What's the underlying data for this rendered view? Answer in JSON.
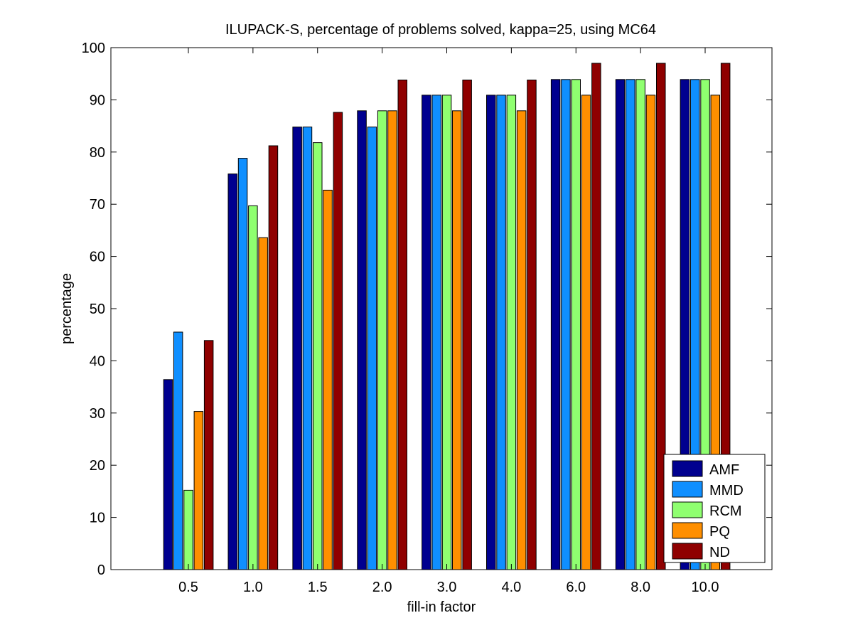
{
  "chart_data": {
    "type": "bar",
    "title": "ILUPACK-S, percentage of problems solved, kappa=25, using MC64",
    "xlabel": "fill-in factor",
    "ylabel": "percentage",
    "ylim": [
      0,
      100
    ],
    "yticks": [
      "0",
      "10",
      "20",
      "30",
      "40",
      "50",
      "60",
      "70",
      "80",
      "90",
      "100"
    ],
    "categories": [
      "0.5",
      "1.0",
      "1.5",
      "2.0",
      "3.0",
      "4.0",
      "6.0",
      "8.0",
      "10.0"
    ],
    "legend_position": "bottom-right",
    "grid": false,
    "series": [
      {
        "name": "AMF",
        "color": "#00008f",
        "values": [
          36.4,
          75.8,
          84.8,
          87.9,
          90.9,
          90.9,
          93.9,
          93.9,
          93.9
        ]
      },
      {
        "name": "MMD",
        "color": "#0f8fff",
        "values": [
          45.5,
          78.8,
          84.8,
          84.8,
          90.9,
          90.9,
          93.9,
          93.9,
          93.9
        ]
      },
      {
        "name": "RCM",
        "color": "#8fff70",
        "values": [
          15.2,
          69.7,
          81.8,
          87.9,
          90.9,
          90.9,
          93.9,
          93.9,
          93.9
        ]
      },
      {
        "name": "PQ",
        "color": "#ff8f00",
        "values": [
          30.3,
          63.6,
          72.7,
          87.9,
          87.9,
          87.9,
          90.9,
          90.9,
          90.9
        ]
      },
      {
        "name": "ND",
        "color": "#8f0000",
        "values": [
          43.9,
          81.2,
          87.6,
          93.8,
          93.8,
          93.8,
          97.0,
          97.0,
          97.0
        ]
      }
    ]
  }
}
